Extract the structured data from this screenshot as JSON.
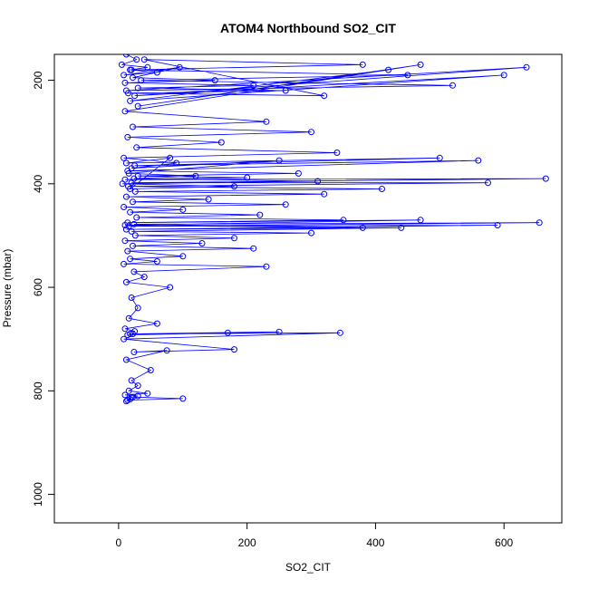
{
  "chart_data": {
    "type": "scatter",
    "title": "ATOM4 Northbound SO2_CIT",
    "xlabel": "SO2_CIT",
    "ylabel": "Pressure (mbar)",
    "xlim": [
      -100,
      690
    ],
    "ylim": [
      1055,
      150
    ],
    "y_reversed": true,
    "xticks": [
      0,
      200,
      400,
      600
    ],
    "yticks": [
      200,
      400,
      600,
      800,
      1000
    ],
    "grid": false,
    "point_style": "open-circle-connected",
    "color": "#0000ff",
    "series": [
      {
        "x": [
          12,
          28,
          5,
          45,
          18,
          60,
          8,
          95,
          22,
          150,
          10,
          210,
          30,
          260,
          15,
          320,
          40,
          380,
          20,
          450,
          35,
          520,
          12,
          635,
          25,
          600,
          18,
          420,
          30,
          470,
          10,
          230,
          22,
          300,
          14,
          160,
          28,
          340,
          8,
          90,
          20,
          250,
          16,
          120,
          24,
          310,
          6,
          180,
          18,
          80,
          12,
          500,
          25,
          560,
          14,
          280,
          30,
          200,
          10,
          665,
          20,
          575,
          15,
          410,
          26,
          320,
          12,
          140,
          22,
          260,
          8,
          100,
          18,
          220,
          28,
          350,
          14,
          470,
          10,
          380,
          24,
          655,
          16,
          590,
          12,
          440,
          20,
          300,
          26,
          180,
          10,
          130,
          22,
          210,
          14,
          100,
          18,
          60,
          8,
          230,
          24,
          40,
          12,
          80,
          20,
          30,
          16,
          60,
          10,
          25,
          22,
          170,
          14,
          250,
          18,
          345,
          8,
          180,
          24,
          75,
          12,
          50,
          20,
          30,
          16,
          45,
          10,
          30,
          22,
          100,
          14,
          20,
          18,
          12
        ],
        "y": [
          150,
          160,
          170,
          175,
          180,
          185,
          190,
          175,
          195,
          200,
          205,
          210,
          215,
          220,
          225,
          230,
          160,
          170,
          180,
          190,
          200,
          210,
          220,
          175,
          230,
          190,
          240,
          180,
          250,
          170,
          260,
          280,
          290,
          300,
          310,
          320,
          330,
          340,
          350,
          360,
          370,
          355,
          380,
          385,
          390,
          395,
          400,
          405,
          410,
          350,
          360,
          350,
          365,
          355,
          375,
          380,
          385,
          388,
          392,
          390,
          398,
          398,
          405,
          410,
          415,
          420,
          425,
          430,
          435,
          440,
          445,
          450,
          455,
          460,
          465,
          470,
          475,
          470,
          480,
          485,
          478,
          475,
          482,
          480,
          488,
          485,
          492,
          495,
          500,
          505,
          510,
          515,
          520,
          525,
          530,
          540,
          545,
          550,
          555,
          560,
          570,
          580,
          590,
          600,
          620,
          640,
          660,
          670,
          680,
          685,
          690,
          688,
          692,
          686,
          690,
          688,
          700,
          720,
          725,
          722,
          740,
          760,
          780,
          790,
          800,
          805,
          808,
          810,
          812,
          815,
          818,
          812,
          816,
          820
        ]
      }
    ]
  }
}
